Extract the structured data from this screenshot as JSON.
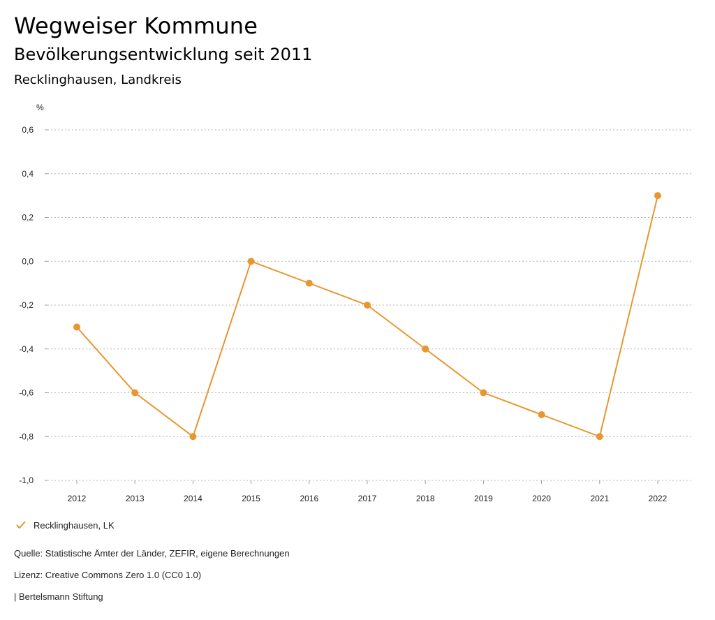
{
  "header": {
    "brand": "Wegweiser Kommune",
    "subtitle": "Bevölkerungsentwicklung seit 2011",
    "region": "Recklinghausen, Landkreis"
  },
  "chart_data": {
    "type": "line",
    "title": "Bevölkerungsentwicklung seit 2011",
    "ylabel": "%",
    "xlabel": "",
    "ylim": [
      -1.0,
      0.6
    ],
    "yticks": [
      0.6,
      0.4,
      0.2,
      0.0,
      -0.2,
      -0.4,
      -0.6,
      -0.8,
      -1.0
    ],
    "ytick_labels": [
      "0,6",
      "0,4",
      "0,2",
      "0,0",
      "-0,2",
      "-0,4",
      "-0,6",
      "-0,8",
      "-1,0"
    ],
    "x": [
      "2012",
      "2013",
      "2014",
      "2015",
      "2016",
      "2017",
      "2018",
      "2019",
      "2020",
      "2021",
      "2022"
    ],
    "series": [
      {
        "name": "Recklinghausen, LK",
        "color": "#E8962F",
        "values": [
          -0.3,
          -0.6,
          -0.8,
          0.0,
          -0.1,
          -0.2,
          -0.4,
          -0.6,
          -0.7,
          -0.8,
          0.3
        ]
      }
    ],
    "grid": "horizontal-dotted",
    "legend": "bottom-left"
  },
  "legend": {
    "label": "Recklinghausen, LK"
  },
  "footer": {
    "source": "Quelle: Statistische Ämter der Länder, ZEFIR, eigene Berechnungen",
    "license": "Lizenz: Creative Commons Zero 1.0 (CC0 1.0)",
    "publisher": "| Bertelsmann Stiftung"
  }
}
